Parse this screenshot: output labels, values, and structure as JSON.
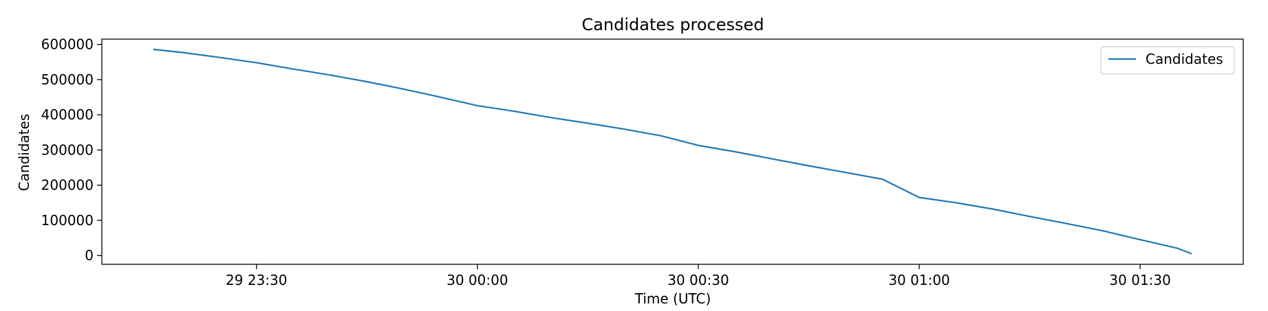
{
  "chart_data": {
    "type": "line",
    "title": "Candidates processed",
    "xlabel": "Time (UTC)",
    "ylabel": "Candidates",
    "x_type": "datetime",
    "xlim": [
      "2024-01-29T23:09:00Z",
      "2024-01-30T01:44:00Z"
    ],
    "ylim": [
      -25000,
      615000
    ],
    "x_ticks": [
      {
        "value": "2024-01-29T23:30:00Z",
        "label": "29 23:30"
      },
      {
        "value": "2024-01-30T00:00:00Z",
        "label": "30 00:00"
      },
      {
        "value": "2024-01-30T00:30:00Z",
        "label": "30 00:30"
      },
      {
        "value": "2024-01-30T01:00:00Z",
        "label": "30 01:00"
      },
      {
        "value": "2024-01-30T01:30:00Z",
        "label": "30 01:30"
      }
    ],
    "y_ticks": [
      0,
      100000,
      200000,
      300000,
      400000,
      500000,
      600000
    ],
    "y_tick_labels": [
      "0",
      "100000",
      "200000",
      "300000",
      "400000",
      "500000",
      "600000"
    ],
    "grid": false,
    "legend_position": "top-right",
    "series": [
      {
        "name": "Candidates",
        "color": "#1f77b4",
        "points": [
          {
            "x": "2024-01-29T23:16:00Z",
            "y": 586000
          },
          {
            "x": "2024-01-29T23:20:00Z",
            "y": 577000
          },
          {
            "x": "2024-01-29T23:25:00Z",
            "y": 563000
          },
          {
            "x": "2024-01-29T23:30:00Z",
            "y": 548000
          },
          {
            "x": "2024-01-29T23:35:00Z",
            "y": 530000
          },
          {
            "x": "2024-01-29T23:40:00Z",
            "y": 513000
          },
          {
            "x": "2024-01-29T23:45:00Z",
            "y": 494000
          },
          {
            "x": "2024-01-29T23:50:00Z",
            "y": 473000
          },
          {
            "x": "2024-01-29T23:55:00Z",
            "y": 450000
          },
          {
            "x": "2024-01-30T00:00:00Z",
            "y": 426000
          },
          {
            "x": "2024-01-30T00:05:00Z",
            "y": 410000
          },
          {
            "x": "2024-01-30T00:10:00Z",
            "y": 392000
          },
          {
            "x": "2024-01-30T00:15:00Z",
            "y": 376000
          },
          {
            "x": "2024-01-30T00:20:00Z",
            "y": 359000
          },
          {
            "x": "2024-01-30T00:25:00Z",
            "y": 340000
          },
          {
            "x": "2024-01-30T00:30:00Z",
            "y": 313000
          },
          {
            "x": "2024-01-30T00:35:00Z",
            "y": 295000
          },
          {
            "x": "2024-01-30T00:40:00Z",
            "y": 275000
          },
          {
            "x": "2024-01-30T00:45:00Z",
            "y": 255000
          },
          {
            "x": "2024-01-30T00:50:00Z",
            "y": 236000
          },
          {
            "x": "2024-01-30T00:55:00Z",
            "y": 217000
          },
          {
            "x": "2024-01-30T01:00:00Z",
            "y": 165000
          },
          {
            "x": "2024-01-30T01:05:00Z",
            "y": 150000
          },
          {
            "x": "2024-01-30T01:10:00Z",
            "y": 132000
          },
          {
            "x": "2024-01-30T01:15:00Z",
            "y": 111000
          },
          {
            "x": "2024-01-30T01:20:00Z",
            "y": 91000
          },
          {
            "x": "2024-01-30T01:25:00Z",
            "y": 70000
          },
          {
            "x": "2024-01-30T01:30:00Z",
            "y": 45000
          },
          {
            "x": "2024-01-30T01:35:00Z",
            "y": 21000
          },
          {
            "x": "2024-01-30T01:37:00Z",
            "y": 5000
          }
        ]
      }
    ]
  }
}
